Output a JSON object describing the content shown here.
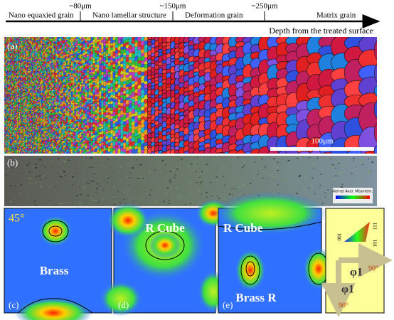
{
  "header": {
    "labels": [
      "Nano equaxied grain",
      "Nano lamellar structure",
      "Deformation grain",
      "Matrix grain"
    ],
    "depths": [
      "~80μm",
      "~150μm",
      "~250μm"
    ],
    "axis_label": "Depth from the treated surface"
  },
  "panels": {
    "a": {
      "label": "(a)",
      "scale_bar": "100μm"
    },
    "b": {
      "label": "(b)",
      "legend_title": "Kernel Aver. Misorient."
    },
    "c": {
      "label": "(c)",
      "angle": "45°",
      "texture": "Brass"
    },
    "d": {
      "label": "(d)",
      "texture": "R Cube"
    },
    "e": {
      "label": "(e)",
      "textures": [
        "R Cube",
        "Brass R"
      ]
    }
  },
  "key": {
    "poles": [
      "001",
      "111",
      "101"
    ],
    "axes": [
      {
        "label": "φ1",
        "angle": "90°"
      },
      {
        "label": "φ1",
        "angle": "90°"
      }
    ]
  }
}
